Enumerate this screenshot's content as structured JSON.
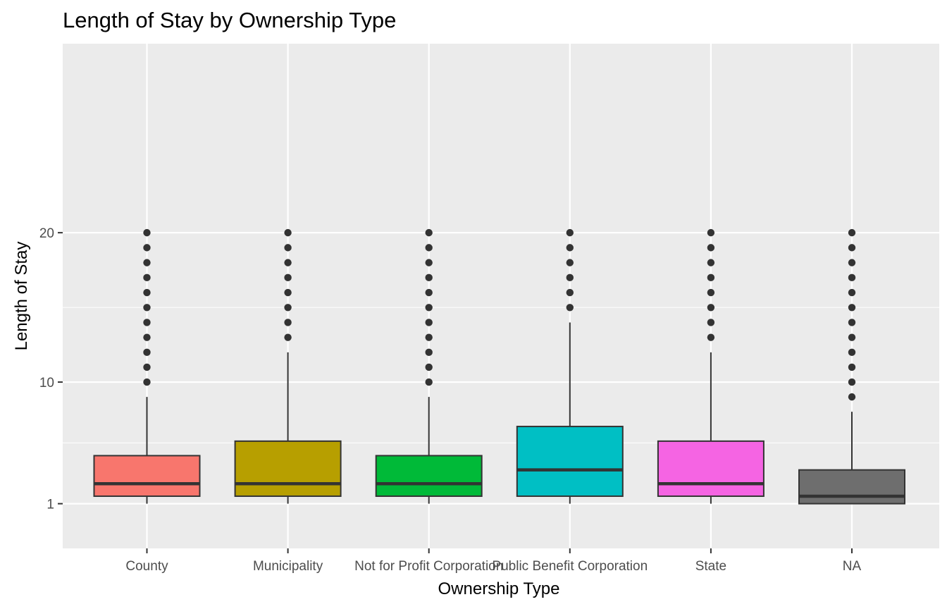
{
  "chart_data": {
    "type": "boxplot",
    "title": "Length of Stay by Ownership Type",
    "xlabel": "Ownership Type",
    "ylabel": "Length of Stay",
    "y_scale": "custom (ticks 1, 10, 20)",
    "ylim": [
      0.05,
      20.5
    ],
    "y_ticks": [
      1,
      10,
      20
    ],
    "y_tick_labels": [
      "1",
      "10",
      "20"
    ],
    "grid": true,
    "legend": "none",
    "categories": [
      "County",
      "Municipality",
      "Not for Profit Corporation",
      "Public Benefit Corporation",
      "State",
      "NA"
    ],
    "boxes": [
      {
        "category": "County",
        "color": "#F8766D",
        "whisker_low": 1,
        "q1": 2,
        "median": 3,
        "q3": 5,
        "whisker_high": 9,
        "outliers": [
          10,
          11,
          12,
          13,
          14,
          15,
          16,
          17,
          18,
          19,
          20
        ]
      },
      {
        "category": "Municipality",
        "color": "#B79F00",
        "whisker_low": 1,
        "q1": 2,
        "median": 3,
        "q3": 6,
        "whisker_high": 12,
        "outliers": [
          13,
          14,
          15,
          16,
          17,
          18,
          19,
          20
        ]
      },
      {
        "category": "Not for Profit Corporation",
        "color": "#00BA38",
        "whisker_low": 1,
        "q1": 2,
        "median": 3,
        "q3": 5,
        "whisker_high": 9,
        "outliers": [
          10,
          11,
          12,
          13,
          14,
          15,
          16,
          17,
          18,
          19,
          20
        ]
      },
      {
        "category": "Public Benefit Corporation",
        "color": "#00BFC4",
        "whisker_low": 1,
        "q1": 2,
        "median": 4,
        "q3": 7,
        "whisker_high": 14,
        "outliers": [
          15,
          16,
          17,
          18,
          19,
          20
        ]
      },
      {
        "category": "State",
        "color": "#F564E3",
        "whisker_low": 1,
        "q1": 2,
        "median": 3,
        "q3": 6,
        "whisker_high": 12,
        "outliers": [
          13,
          14,
          15,
          16,
          17,
          18,
          19,
          20
        ]
      },
      {
        "category": "NA",
        "color": "#6E6E6E",
        "whisker_low": 1,
        "q1": 1,
        "median": 2,
        "q3": 4,
        "whisker_high": 8,
        "outliers": [
          9,
          10,
          11,
          12,
          13,
          14,
          15,
          16,
          17,
          18,
          19,
          20
        ]
      }
    ]
  }
}
